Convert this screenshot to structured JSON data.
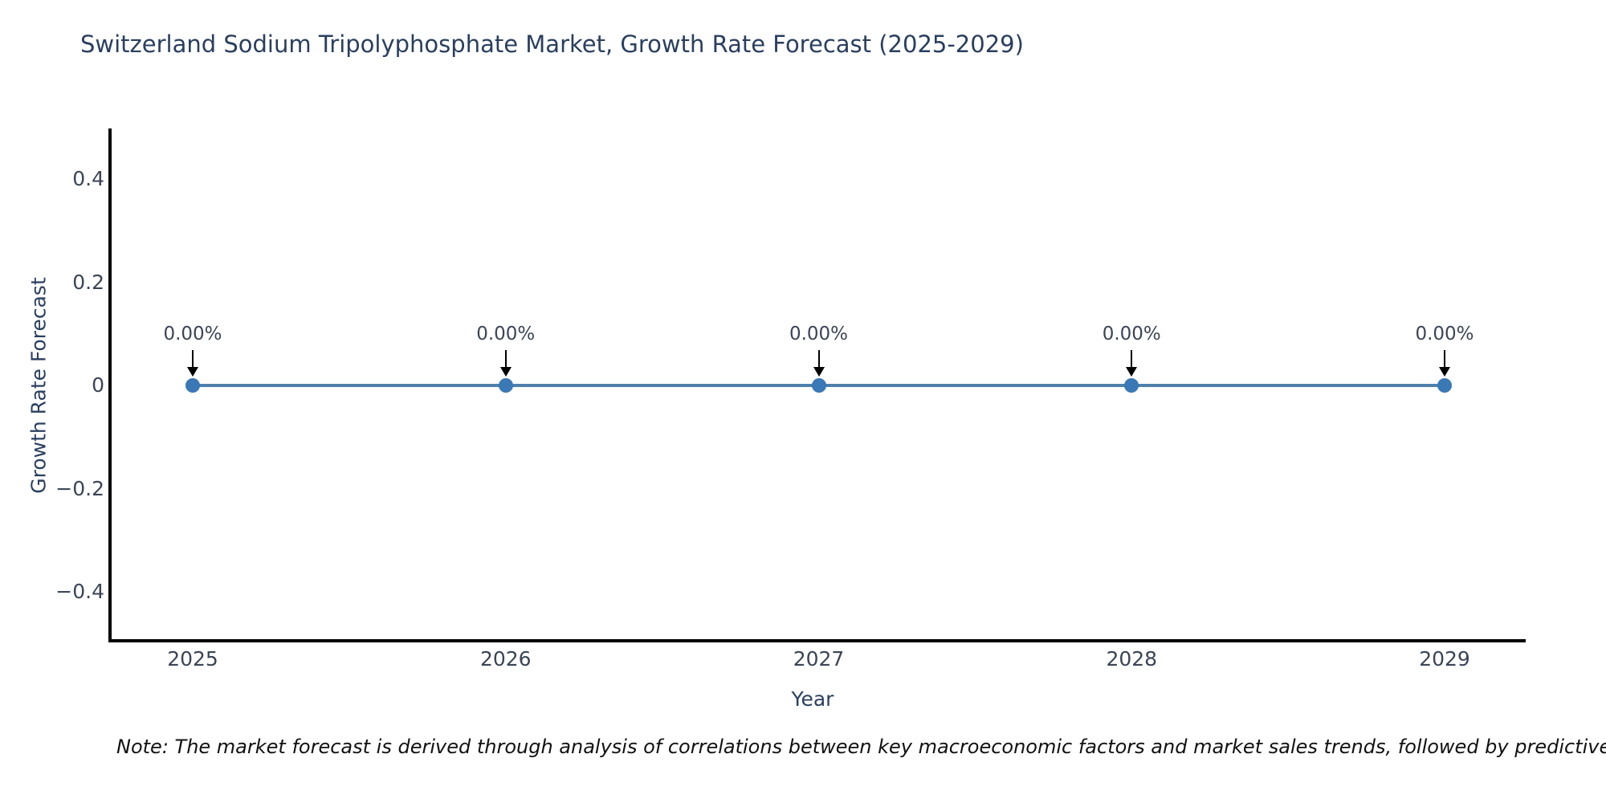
{
  "title": "Switzerland Sodium Tripolyphosphate Market, Growth Rate Forecast (2025-2029)",
  "note": "Note: The market forecast is derived through analysis of correlations between key macroeconomic factors and market sales trends, followed by predictive modeling to project future sales.",
  "colors": {
    "background": "#ffffff",
    "line": "#4d80ab",
    "marker": "#3a78b6",
    "axis": "#000000",
    "arrow": "#000000",
    "tick_text": "#3b4556",
    "heading_text": "#2a3f5f",
    "note_text": "#111111"
  },
  "chart_data": {
    "type": "line",
    "title": "Switzerland Sodium Tripolyphosphate Market, Growth Rate Forecast (2025-2029)",
    "x": [
      "2025",
      "2026",
      "2027",
      "2028",
      "2029"
    ],
    "series": [
      {
        "name": "Growth Rate Forecast",
        "values": [
          0,
          0,
          0,
          0,
          0
        ]
      }
    ],
    "point_labels": [
      "0.00%",
      "0.00%",
      "0.00%",
      "0.00%",
      "0.00%"
    ],
    "xlabel": "Year",
    "ylabel": "Growth Rate Forecast",
    "ylim": [
      -0.5,
      0.5
    ],
    "y_ticks": [
      "0.4",
      "0.2",
      "0",
      "−0.2",
      "−0.4"
    ],
    "y_tick_values": [
      0.4,
      0.2,
      0,
      -0.2,
      -0.4
    ],
    "grid": false,
    "legend": false,
    "annotation_style": "down-arrow-to-point"
  }
}
